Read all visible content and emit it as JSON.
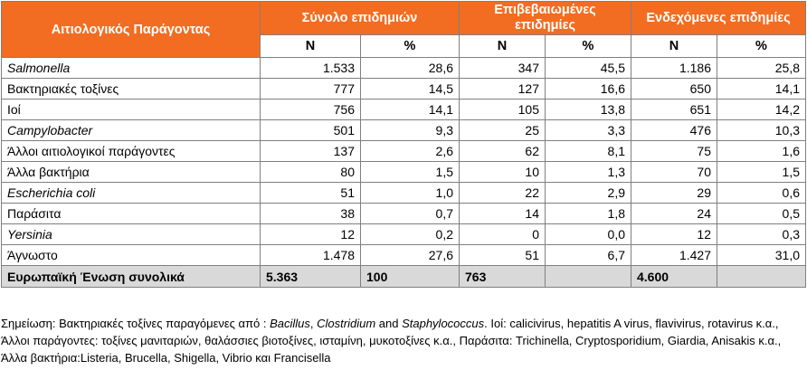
{
  "table": {
    "factor_header": "Αιτιολογικός Παράγοντας",
    "groups": [
      "Σύνολο επιδημιών",
      "Επιβεβαιωμένες επιδημίες",
      "Ενδεχόμενες επιδημίες"
    ],
    "sub_n": "N",
    "sub_pct": "%",
    "rows": [
      {
        "label": "Salmonella",
        "italic": true,
        "cells": [
          "1.533",
          "28,6",
          "347",
          "45,5",
          "1.186",
          "25,8"
        ]
      },
      {
        "label": "Βακτηριακές τοξίνες",
        "italic": false,
        "cells": [
          "777",
          "14,5",
          "127",
          "16,6",
          "650",
          "14,1"
        ]
      },
      {
        "label": "Ιοί",
        "italic": false,
        "cells": [
          "756",
          "14,1",
          "105",
          "13,8",
          "651",
          "14,2"
        ]
      },
      {
        "label": "Campylobacter",
        "italic": true,
        "cells": [
          "501",
          "9,3",
          "25",
          "3,3",
          "476",
          "10,3"
        ]
      },
      {
        "label": "Άλλοι αιτιολογικοί παράγοντες",
        "italic": false,
        "cells": [
          "137",
          "2,6",
          "62",
          "8,1",
          "75",
          "1,6"
        ]
      },
      {
        "label": "Άλλα βακτήρια",
        "italic": false,
        "cells": [
          "80",
          "1,5",
          "10",
          "1,3",
          "70",
          "1,5"
        ]
      },
      {
        "label": "Escherichia coli",
        "italic": true,
        "cells": [
          "51",
          "1,0",
          "22",
          "2,9",
          "29",
          "0,6"
        ]
      },
      {
        "label": "Παράσιτα",
        "italic": false,
        "cells": [
          "38",
          "0,7",
          "14",
          "1,8",
          "24",
          "0,5"
        ]
      },
      {
        "label": "Yersinia",
        "italic": true,
        "cells": [
          "12",
          "0,2",
          "0",
          "0,0",
          "12",
          "0,3"
        ]
      },
      {
        "label": "Άγνωστο",
        "italic": false,
        "cells": [
          "1.478",
          "27,6",
          "51",
          "6,7",
          "1.427",
          "31,0"
        ]
      }
    ],
    "total": {
      "label": "Ευρωπαϊκή Ένωση συνολικά",
      "cells": [
        "5.363",
        "100",
        "763",
        "",
        "4.600",
        ""
      ]
    }
  },
  "note": {
    "prefix": "Σημείωση:  Βακτηριακές τοξίνες παραγόμενες από :  ",
    "bacillus": "Bacillus",
    "sep1": ", ",
    "clostridium": "Clostridium",
    "and": " and ",
    "staph": "Staphylococcus",
    "rest": ". Ιοί:  calicivirus, hepatitis A virus, flavivirus, rotavirus κ.α., Άλλοι παράγοντες: τοξίνες μανιταριών, θαλάσσιες βιοτοξίνες, ισταμίνη, μυκοτοξίνες κ.α., Παράσιτα: Trichinella, Cryptosporidium, Giardia, Anisakis κ.α., Άλλα βακτήρια:Listeria, Brucella, Shigella, Vibrio και Francisella"
  },
  "colors": {
    "header_bg": "#f26d21",
    "total_bg": "#d9d9d9"
  }
}
